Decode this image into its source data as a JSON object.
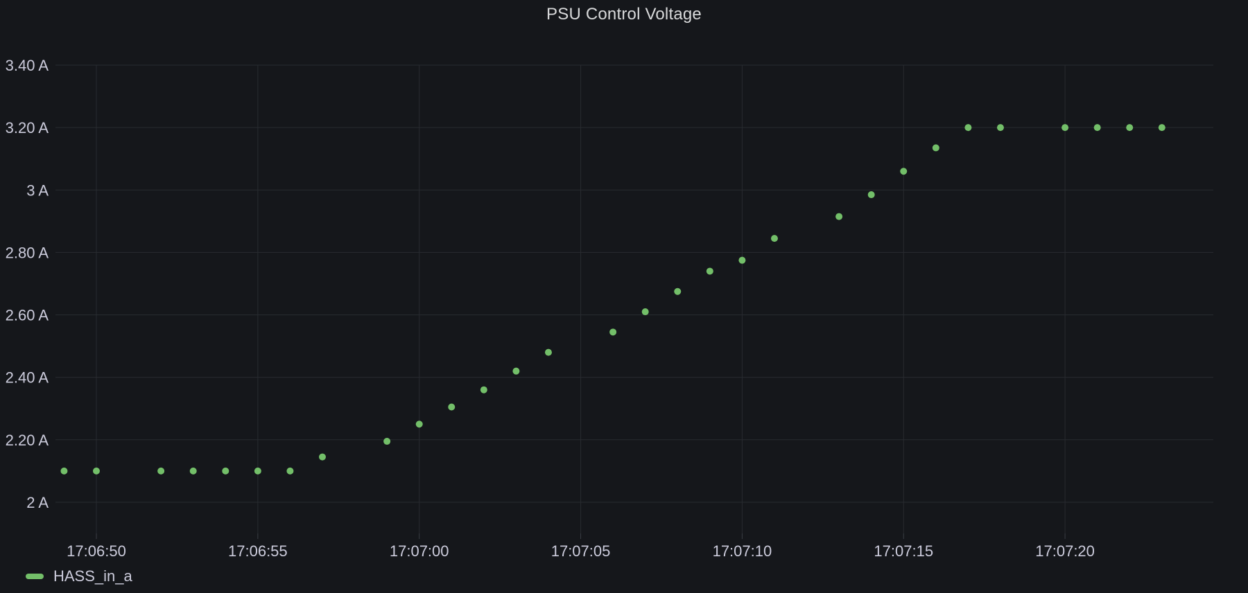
{
  "panel": {
    "title": "PSU Control Voltage"
  },
  "chart_data": {
    "type": "scatter",
    "title": "PSU Control Voltage",
    "xlabel": "",
    "ylabel": "",
    "x_range": [
      "17:06:48.7",
      "17:07:24.6"
    ],
    "y_range": [
      1.9,
      3.4
    ],
    "grid": true,
    "legend_position": "bottom-left",
    "y_ticks": [
      {
        "label": "3.40 A",
        "value": 3.4
      },
      {
        "label": "3.20 A",
        "value": 3.2
      },
      {
        "label": "3 A",
        "value": 3.0
      },
      {
        "label": "2.80 A",
        "value": 2.8
      },
      {
        "label": "2.60 A",
        "value": 2.6
      },
      {
        "label": "2.40 A",
        "value": 2.4
      },
      {
        "label": "2.20 A",
        "value": 2.2
      },
      {
        "label": "2 A",
        "value": 2.0
      }
    ],
    "x_ticks": [
      {
        "label": "17:06:50",
        "value": "17:06:50"
      },
      {
        "label": "17:06:55",
        "value": "17:06:55"
      },
      {
        "label": "17:07:00",
        "value": "17:07:00"
      },
      {
        "label": "17:07:05",
        "value": "17:07:05"
      },
      {
        "label": "17:07:10",
        "value": "17:07:10"
      },
      {
        "label": "17:07:15",
        "value": "17:07:15"
      },
      {
        "label": "17:07:20",
        "value": "17:07:20"
      }
    ],
    "series": [
      {
        "name": "HASS_in_a",
        "color": "#73bf69",
        "points": [
          {
            "t": "17:06:49",
            "v": 2.1
          },
          {
            "t": "17:06:50",
            "v": 2.1
          },
          {
            "t": "17:06:52",
            "v": 2.1
          },
          {
            "t": "17:06:53",
            "v": 2.1
          },
          {
            "t": "17:06:54",
            "v": 2.1
          },
          {
            "t": "17:06:55",
            "v": 2.1
          },
          {
            "t": "17:06:56",
            "v": 2.1
          },
          {
            "t": "17:06:57",
            "v": 2.145
          },
          {
            "t": "17:06:59",
            "v": 2.195
          },
          {
            "t": "17:07:00",
            "v": 2.25
          },
          {
            "t": "17:07:01",
            "v": 2.305
          },
          {
            "t": "17:07:02",
            "v": 2.36
          },
          {
            "t": "17:07:03",
            "v": 2.42
          },
          {
            "t": "17:07:04",
            "v": 2.48
          },
          {
            "t": "17:07:06",
            "v": 2.545
          },
          {
            "t": "17:07:07",
            "v": 2.61
          },
          {
            "t": "17:07:08",
            "v": 2.675
          },
          {
            "t": "17:07:09",
            "v": 2.74
          },
          {
            "t": "17:07:10",
            "v": 2.775
          },
          {
            "t": "17:07:11",
            "v": 2.845
          },
          {
            "t": "17:07:13",
            "v": 2.915
          },
          {
            "t": "17:07:14",
            "v": 2.985
          },
          {
            "t": "17:07:15",
            "v": 3.06
          },
          {
            "t": "17:07:16",
            "v": 3.135
          },
          {
            "t": "17:07:17",
            "v": 3.2
          },
          {
            "t": "17:07:18",
            "v": 3.2
          },
          {
            "t": "17:07:20",
            "v": 3.2
          },
          {
            "t": "17:07:21",
            "v": 3.2
          },
          {
            "t": "17:07:22",
            "v": 3.2
          },
          {
            "t": "17:07:23",
            "v": 3.2
          }
        ]
      }
    ],
    "colors": {
      "background": "#15171b",
      "gridline": "#282b30",
      "tick": "#3a3e44",
      "axis_text": "#ccccdc",
      "title_text": "#d8d9da",
      "series_green": "#73bf69"
    }
  }
}
